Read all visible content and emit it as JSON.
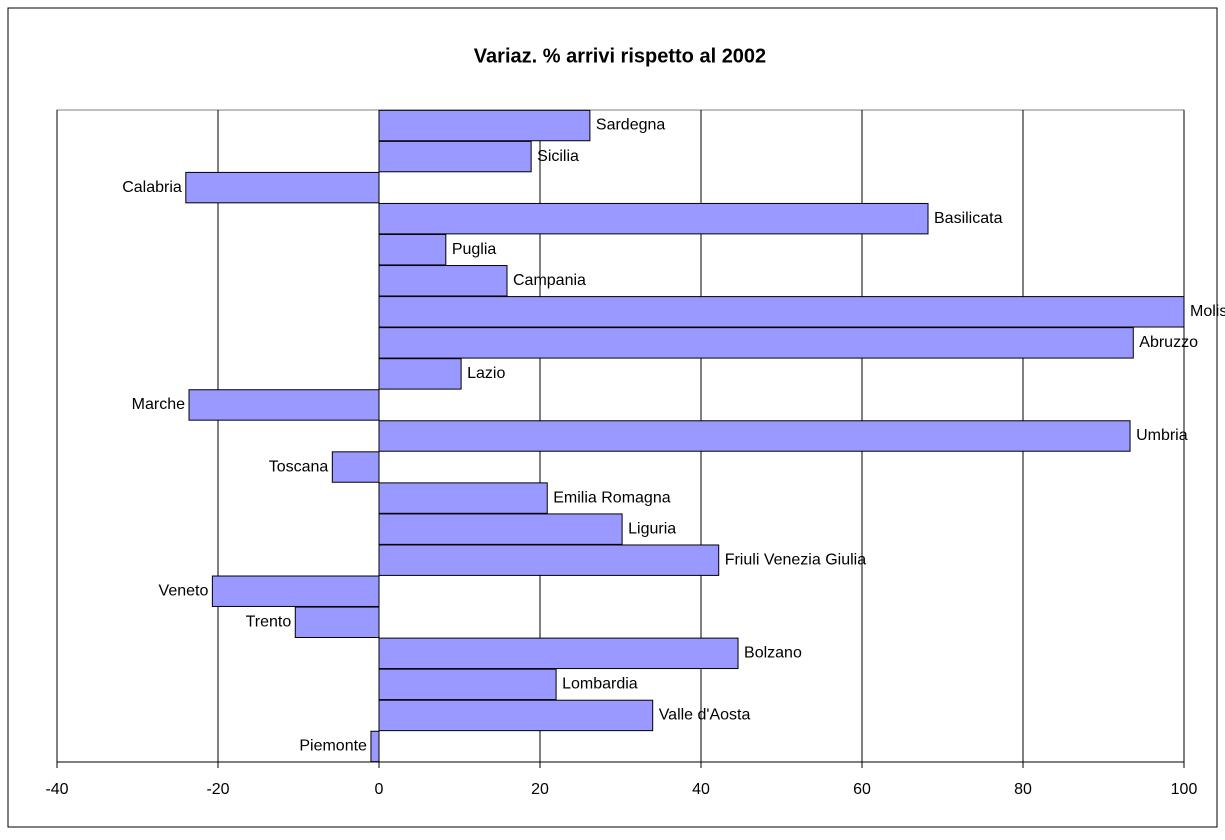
{
  "chart_data": {
    "type": "barh",
    "title": "Variaz. % arrivi rispetto al 2002",
    "categories": [
      "Piemonte",
      "Valle d'Aosta",
      "Lombardia",
      "Bolzano",
      "Trento",
      "Veneto",
      "Friuli Venezia Giulia",
      "Liguria",
      "Emilia Romagna",
      "Toscana",
      "Umbria",
      "Marche",
      "Lazio",
      "Abruzzo",
      "Molise",
      "Campania",
      "Puglia",
      "Basilicata",
      "Calabria",
      "Sicilia",
      "Sardegna"
    ],
    "values": [
      -1.0,
      34.0,
      22.0,
      44.6,
      -10.4,
      -20.7,
      42.2,
      30.2,
      20.9,
      -5.8,
      93.3,
      -23.6,
      10.2,
      93.7,
      100,
      15.9,
      8.3,
      68.2,
      -24.0,
      18.9,
      26.2
    ],
    "color": "#9999ff",
    "xlim": [
      -40,
      100
    ],
    "xticks": [
      -40,
      -20,
      0,
      20,
      40,
      60,
      80,
      100
    ],
    "grid": true
  }
}
